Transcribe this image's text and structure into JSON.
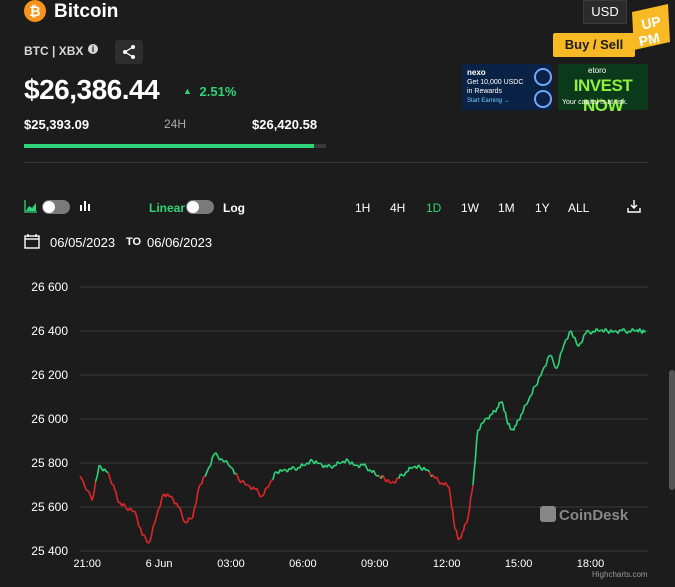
{
  "header": {
    "coin_symbol": "₿",
    "title": "Bitcoin",
    "currency": "USD",
    "buy_sell": "Buy / Sell",
    "pmup_logo": "PM UP"
  },
  "ticker": {
    "pair": "BTC | XBX",
    "price": "$26,386.44",
    "change_arrow": "▲",
    "change": "2.51%",
    "low": "$25,393.09",
    "range_label": "24H",
    "high": "$26,420.58",
    "range_position": 0.96
  },
  "ads": {
    "ad1_brand": "nexo",
    "ad1_line1": "Get 10,000 USDC",
    "ad1_line2": "in Rewards",
    "ad1_cta": "Start Earning →",
    "ad2_brand": "etoro",
    "ad2_headline": "INVEST NOW",
    "ad2_sub": "Your capital is at risk."
  },
  "controls": {
    "linear": "Linear",
    "log": "Log",
    "ranges": [
      "1H",
      "4H",
      "1D",
      "1W",
      "1M",
      "1Y",
      "ALL"
    ],
    "active_range": "1D",
    "date_from": "06/05/2023",
    "date_to_label": "TO",
    "date_to": "06/06/2023"
  },
  "watermark": "CoinDesk",
  "credit": "Highcharts.com",
  "colors": {
    "up": "#2fd47a",
    "down": "#e0262b",
    "accent": "#f7b924",
    "bitcoin": "#f7931a"
  },
  "chart_data": {
    "type": "line",
    "y_ticks": [
      "26 600",
      "26 400",
      "26 200",
      "26 000",
      "25 800",
      "25 600",
      "25 400"
    ],
    "y_tick_values": [
      26600,
      26400,
      26200,
      26000,
      25800,
      25600,
      25400
    ],
    "ylim": [
      25400,
      26600
    ],
    "x_ticks": [
      "21:00",
      "6 Jun",
      "03:00",
      "06:00",
      "09:00",
      "12:00",
      "15:00",
      "18:00"
    ],
    "x_tick_hours": [
      0,
      3,
      6,
      9,
      12,
      15,
      18,
      21
    ],
    "xlim_hours": [
      -0.3,
      23.4
    ],
    "series": [
      {
        "hours": [
          -0.3,
          0.2,
          0.5,
          0.8,
          1.1,
          1.3,
          1.6,
          2.0,
          2.3,
          2.6,
          2.9,
          3.2,
          3.5,
          3.8,
          4.1,
          4.4,
          4.7,
          5.0,
          5.3,
          5.6,
          6.0,
          6.3,
          6.7,
          7.0,
          7.3,
          7.6,
          7.9,
          8.2,
          8.5,
          8.8,
          9.1,
          9.4,
          9.7,
          10.0,
          10.3,
          10.6,
          10.9,
          11.2,
          11.5,
          11.8,
          12.1,
          12.4,
          12.7,
          13.0,
          13.3,
          13.6,
          13.9,
          14.2,
          14.5,
          14.8,
          15.1,
          15.3,
          15.5,
          15.7,
          15.9,
          16.1,
          16.3,
          16.6,
          16.9,
          17.1,
          17.3,
          17.5,
          17.7,
          17.9,
          18.1,
          18.4,
          18.7,
          19.0,
          19.3,
          19.6,
          19.9,
          20.2,
          20.5,
          20.8,
          21.1,
          21.4,
          21.7,
          22.0,
          22.3,
          22.6,
          22.9,
          23.1,
          23.3
        ],
        "values": [
          25740,
          25630,
          25790,
          25760,
          25700,
          25620,
          25600,
          25580,
          25470,
          25440,
          25560,
          25660,
          25650,
          25600,
          25530,
          25550,
          25700,
          25760,
          25840,
          25820,
          25780,
          25730,
          25700,
          25680,
          25650,
          25700,
          25760,
          25770,
          25770,
          25780,
          25790,
          25810,
          25800,
          25780,
          25790,
          25800,
          25810,
          25790,
          25790,
          25770,
          25740,
          25730,
          25710,
          25730,
          25760,
          25780,
          25780,
          25770,
          25730,
          25710,
          25690,
          25530,
          25450,
          25490,
          25560,
          25700,
          25950,
          26000,
          26020,
          26050,
          26080,
          26000,
          25950,
          25970,
          26020,
          26080,
          26150,
          26220,
          26290,
          26230,
          26340,
          26400,
          26330,
          26390,
          26400,
          26400,
          26400,
          26400,
          26400,
          26400,
          26400,
          26400,
          26400
        ]
      }
    ]
  }
}
